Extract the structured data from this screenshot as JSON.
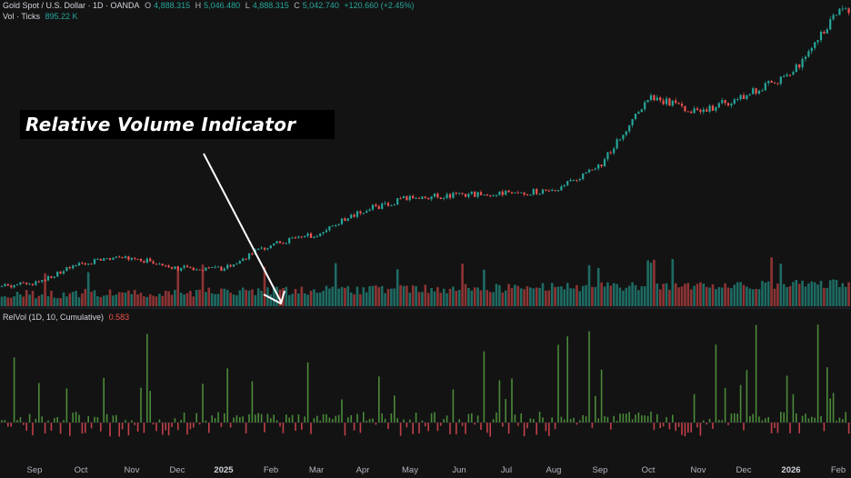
{
  "legend": {
    "symbol": "Gold Spot / U.S. Dollar · 1D · OANDA",
    "open_key": "O",
    "open_val": "4,888.315",
    "high_key": "H",
    "high_val": "5,046.480",
    "low_key": "L",
    "low_val": "4,888.315",
    "close_key": "C",
    "close_val": "5,042.740",
    "change": "+120.660 (+2.45%)",
    "vol_label": "Vol · Ticks",
    "vol_val": "895.22 K",
    "relvol_label": "RelVol (1D, 10, Cumulative)",
    "relvol_val": "0.583"
  },
  "annotation": {
    "text": "Relative Volume Indicator"
  },
  "colors": {
    "up": "#26a69a",
    "down": "#ef5350",
    "vol_up": "#1e6b63",
    "vol_down": "#8e3434",
    "relvol_up": "#4a8a3a",
    "relvol_down": "#c0404a",
    "background": "#131313"
  },
  "chart_data": {
    "type": "candlestick",
    "title": "Gold Spot / U.S. Dollar · 1D · OANDA",
    "x_axis_ticks": [
      "Sep",
      "Oct",
      "Nov",
      "Dec",
      "2025",
      "Feb",
      "Mar",
      "Apr",
      "May",
      "Jun",
      "Jul",
      "Aug",
      "Sep",
      "Oct",
      "Nov",
      "Dec",
      "2026",
      "Feb"
    ],
    "bold_ticks": [
      "2025",
      "2026"
    ],
    "price_path": [
      {
        "month": "Sep",
        "close": 2500
      },
      {
        "month": "Oct",
        "close": 2690
      },
      {
        "month": "Nov",
        "close": 2740
      },
      {
        "month": "Dec",
        "close": 2640
      },
      {
        "month": "2025",
        "close": 2640
      },
      {
        "month": "Feb",
        "close": 2860
      },
      {
        "month": "Mar",
        "close": 2960
      },
      {
        "month": "Apr",
        "close": 3180
      },
      {
        "month": "May",
        "close": 3300
      },
      {
        "month": "Jun",
        "close": 3320
      },
      {
        "month": "Jul",
        "close": 3350
      },
      {
        "month": "Aug",
        "close": 3360
      },
      {
        "month": "Sep",
        "close": 3600
      },
      {
        "month": "Oct",
        "close": 4250
      },
      {
        "month": "Nov",
        "close": 4100
      },
      {
        "month": "Dec",
        "close": 4250
      },
      {
        "month": "2026",
        "close": 4450
      },
      {
        "month": "Feb",
        "close": 5042.74
      }
    ],
    "last": {
      "open": 4888.315,
      "high": 5046.48,
      "low": 4888.315,
      "close": 5042.74,
      "change": 120.66,
      "change_pct": 2.45
    },
    "volume_last": 895220,
    "relvol_last": 0.583
  }
}
